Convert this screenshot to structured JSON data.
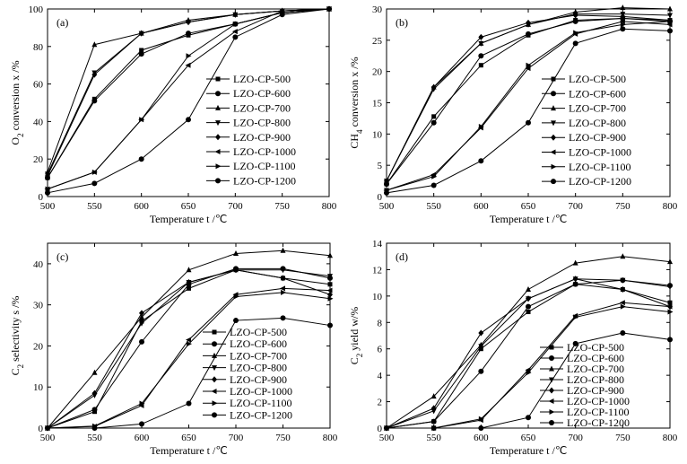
{
  "figure": {
    "chart_data": [
      {
        "type": "line",
        "panel_label": "(a)",
        "xlabel": "Temperature   t /℃",
        "ylabel": "O2 conversion   x /%",
        "ylabel_parts": {
          "pre": "O",
          "sub": "2",
          "post": " conversion   x /%"
        },
        "xlim": [
          500,
          800
        ],
        "ylim": [
          0,
          100
        ],
        "xticks": [
          "500",
          "550",
          "600",
          "650",
          "700",
          "750",
          "800"
        ],
        "yticks": [
          "0",
          "20",
          "40",
          "60",
          "80",
          "100"
        ],
        "x": [
          500,
          550,
          600,
          650,
          700,
          750,
          800
        ],
        "legend_position": "center-right",
        "series": [
          {
            "name": "LZO-CP-500",
            "marker": "square",
            "values": [
              10,
              52,
              78,
              86,
              92,
              98,
              100
            ]
          },
          {
            "name": "LZO-CP-600",
            "marker": "circle",
            "values": [
              10,
              51,
              76,
              87,
              92,
              98,
              100
            ]
          },
          {
            "name": "LZO-CP-700",
            "marker": "triangle-up",
            "values": [
              13,
              81,
              87,
              94,
              97,
              99,
              100
            ]
          },
          {
            "name": "LZO-CP-800",
            "marker": "triangle-down",
            "values": [
              12,
              66,
              87,
              93,
              97,
              99,
              100
            ]
          },
          {
            "name": "LZO-CP-900",
            "marker": "diamond",
            "values": [
              11,
              65,
              87,
              93,
              97,
              99,
              100
            ]
          },
          {
            "name": "LZO-CP-1000",
            "marker": "triangle-left",
            "values": [
              4,
              13,
              41,
              70,
              88,
              99,
              100
            ]
          },
          {
            "name": "LZO-CP-1100",
            "marker": "triangle-right",
            "values": [
              4,
              13,
              41,
              75,
              92,
              98,
              100
            ]
          },
          {
            "name": "LZO-CP-1200",
            "marker": "circle",
            "values": [
              2,
              7,
              20,
              41,
              85,
              97,
              100
            ]
          }
        ]
      },
      {
        "type": "line",
        "panel_label": "(b)",
        "xlabel": "Temperature   t /℃",
        "ylabel": "CH4 conversion   x /%",
        "ylabel_parts": {
          "pre": "CH",
          "sub": "4",
          "post": " conversion   x /%"
        },
        "xlim": [
          500,
          800
        ],
        "ylim": [
          0,
          30
        ],
        "xticks": [
          "500",
          "550",
          "600",
          "650",
          "700",
          "750",
          "800"
        ],
        "yticks": [
          "0",
          "5",
          "10",
          "15",
          "20",
          "25",
          "30"
        ],
        "x": [
          500,
          550,
          600,
          650,
          700,
          750,
          800
        ],
        "legend_position": "center-right",
        "series": [
          {
            "name": "LZO-CP-500",
            "marker": "square",
            "values": [
              2,
              12.8,
              21,
              25.8,
              28.2,
              28.5,
              28.2
            ]
          },
          {
            "name": "LZO-CP-600",
            "marker": "circle",
            "values": [
              2,
              11.8,
              22.5,
              26,
              28,
              28.5,
              28
            ]
          },
          {
            "name": "LZO-CP-700",
            "marker": "triangle-up",
            "values": [
              2.5,
              17.5,
              24.5,
              27.5,
              29.5,
              30.2,
              30
            ]
          },
          {
            "name": "LZO-CP-800",
            "marker": "triangle-down",
            "values": [
              2.5,
              17.2,
              24.5,
              27.5,
              29.2,
              29.2,
              29
            ]
          },
          {
            "name": "LZO-CP-900",
            "marker": "diamond",
            "values": [
              2.5,
              17.5,
              25.5,
              27.8,
              29,
              28.8,
              28.2
            ]
          },
          {
            "name": "LZO-CP-1000",
            "marker": "triangle-left",
            "values": [
              1,
              3.5,
              11,
              20.5,
              26,
              28,
              27.5
            ]
          },
          {
            "name": "LZO-CP-1100",
            "marker": "triangle-right",
            "values": [
              1,
              3.2,
              11.2,
              21,
              26.2,
              27.5,
              28
            ]
          },
          {
            "name": "LZO-CP-1200",
            "marker": "circle",
            "values": [
              0.6,
              1.8,
              5.7,
              11.8,
              24.5,
              26.8,
              26.5
            ]
          }
        ]
      },
      {
        "type": "line",
        "panel_label": "(c)",
        "xlabel": "Temperature   t /℃",
        "ylabel": "C2 selectivity   s /%",
        "ylabel_parts": {
          "pre": "C",
          "sub": "2",
          "post": " selectivity   s /%"
        },
        "xlim": [
          500,
          800
        ],
        "ylim": [
          0,
          45
        ],
        "xticks": [
          "500",
          "550",
          "600",
          "650",
          "700",
          "750",
          "800"
        ],
        "yticks": [
          "0",
          "10",
          "20",
          "30",
          "40"
        ],
        "x": [
          500,
          550,
          600,
          650,
          700,
          750,
          800
        ],
        "legend_position": "lower-right",
        "series": [
          {
            "name": "LZO-CP-500",
            "marker": "square",
            "values": [
              0,
              4,
              26,
              34,
              38.5,
              36.5,
              35
            ]
          },
          {
            "name": "LZO-CP-600",
            "marker": "circle",
            "values": [
              0,
              4.5,
              21,
              35,
              38.8,
              38.8,
              36.5
            ]
          },
          {
            "name": "LZO-CP-700",
            "marker": "triangle-up",
            "values": [
              0,
              13.5,
              27,
              38.5,
              42.5,
              43.2,
              42
            ]
          },
          {
            "name": "LZO-CP-800",
            "marker": "triangle-down",
            "values": [
              0,
              8,
              25.5,
              35.5,
              38.5,
              38.5,
              37
            ]
          },
          {
            "name": "LZO-CP-900",
            "marker": "diamond",
            "values": [
              0,
              8.5,
              28,
              35.5,
              38.5,
              36.5,
              32.5
            ]
          },
          {
            "name": "LZO-CP-1000",
            "marker": "triangle-left",
            "values": [
              0,
              0.4,
              5.5,
              21.5,
              32.5,
              34,
              33.5
            ]
          },
          {
            "name": "LZO-CP-1100",
            "marker": "triangle-right",
            "values": [
              0,
              0.5,
              6,
              20.5,
              32,
              33,
              31.5
            ]
          },
          {
            "name": "LZO-CP-1200",
            "marker": "circle",
            "values": [
              0,
              0,
              1,
              6,
              26.2,
              26.8,
              25
            ]
          }
        ]
      },
      {
        "type": "line",
        "panel_label": "(d)",
        "xlabel": "Temperature   t /℃",
        "ylabel": "C2 yield   w/%",
        "ylabel_parts": {
          "pre": "C",
          "sub": "2",
          "post": " yield   w/%"
        },
        "xlim": [
          500,
          800
        ],
        "ylim": [
          0,
          14
        ],
        "xticks": [
          "500",
          "550",
          "600",
          "650",
          "700",
          "750",
          "800"
        ],
        "yticks": [
          "0",
          "2",
          "4",
          "6",
          "8",
          "10",
          "12",
          "14"
        ],
        "x": [
          500,
          550,
          600,
          650,
          700,
          750,
          800
        ],
        "legend_position": "lower-right",
        "series": [
          {
            "name": "LZO-CP-500",
            "marker": "square",
            "values": [
              0,
              0.5,
              6,
              8.8,
              10.9,
              10.5,
              9.5
            ]
          },
          {
            "name": "LZO-CP-600",
            "marker": "circle",
            "values": [
              0,
              0.5,
              4.3,
              9.2,
              10.9,
              11.2,
              10.8
            ]
          },
          {
            "name": "LZO-CP-700",
            "marker": "triangle-up",
            "values": [
              0,
              2.4,
              6.3,
              10.5,
              12.5,
              13,
              12.6
            ]
          },
          {
            "name": "LZO-CP-800",
            "marker": "triangle-down",
            "values": [
              0,
              1.3,
              6.2,
              9.8,
              11.3,
              11.2,
              10.7
            ]
          },
          {
            "name": "LZO-CP-900",
            "marker": "diamond",
            "values": [
              0,
              1.5,
              7.2,
              9.8,
              11.3,
              10.5,
              9.2
            ]
          },
          {
            "name": "LZO-CP-1000",
            "marker": "triangle-left",
            "values": [
              0,
              0,
              0.6,
              4.4,
              8.5,
              9.5,
              9.2
            ]
          },
          {
            "name": "LZO-CP-1100",
            "marker": "triangle-right",
            "values": [
              0,
              0,
              0.7,
              4.2,
              8.4,
              9.2,
              8.8
            ]
          },
          {
            "name": "LZO-CP-1200",
            "marker": "circle",
            "values": [
              0,
              0,
              0,
              0.8,
              6.4,
              7.2,
              6.7
            ]
          }
        ]
      }
    ]
  }
}
